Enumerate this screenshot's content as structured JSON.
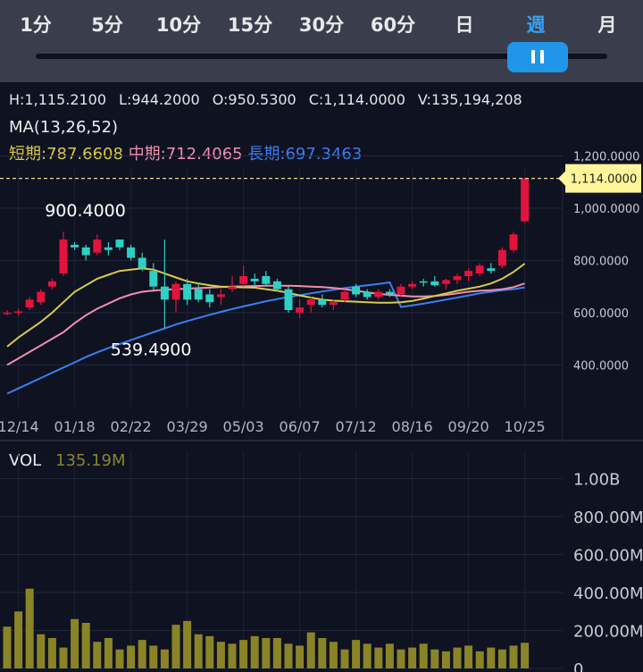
{
  "tabs": [
    {
      "label": "1分",
      "active": false
    },
    {
      "label": "5分",
      "active": false
    },
    {
      "label": "10分",
      "active": false
    },
    {
      "label": "15分",
      "active": false
    },
    {
      "label": "30分",
      "active": false
    },
    {
      "label": "60分",
      "active": false
    },
    {
      "label": "日",
      "active": false
    },
    {
      "label": "週",
      "active": true
    },
    {
      "label": "月",
      "active": false
    }
  ],
  "zoom_slider": {
    "position": 0.88
  },
  "ohlc": {
    "high": "H:1,115.2100",
    "low": "L:944.2000",
    "open": "O:950.5300",
    "close": "C:1,114.0000",
    "volume": "V:135,194,208"
  },
  "ma": {
    "title": "MA(13,26,52)",
    "short_label": "短期:787.6608",
    "mid_label": "中期:712.4065",
    "long_label": "長期:697.3463"
  },
  "volume_panel": {
    "label": "VOL",
    "value": "135.19M"
  },
  "colors": {
    "up": "#e0143c",
    "down": "#2fd0c4",
    "ma_short": "#d8cb4a",
    "ma_mid": "#f08fb0",
    "ma_long": "#3a7ff0",
    "volume": "#8a8428",
    "price_tag": "#fff59a",
    "active_tab": "#3aa0ef"
  },
  "chart_data": [
    {
      "type": "candlestick",
      "title": "",
      "last_price_label": "1,114.0000",
      "last_price": 1114,
      "y_ticks": [
        "1,200.0000",
        "1,000.0000",
        "800.0000",
        "600.0000",
        "400.0000"
      ],
      "y_tick_values": [
        1200,
        1000,
        800,
        600,
        400
      ],
      "ylim": [
        250,
        1370
      ],
      "x_ticks": [
        {
          "label": "12/14",
          "index": 1
        },
        {
          "label": "01/18",
          "index": 6
        },
        {
          "label": "02/22",
          "index": 11
        },
        {
          "label": "03/29",
          "index": 16
        },
        {
          "label": "05/03",
          "index": 21
        },
        {
          "label": "06/07",
          "index": 26
        },
        {
          "label": "07/12",
          "index": 31
        },
        {
          "label": "08/16",
          "index": 36
        },
        {
          "label": "09/20",
          "index": 41
        },
        {
          "label": "10/25",
          "index": 46
        }
      ],
      "annotations": [
        {
          "label": "900.4000",
          "value": 900.4,
          "index": 7
        },
        {
          "label": "539.4900",
          "value": 539.49,
          "index": 13
        }
      ],
      "ohlc": [
        [
          600,
          610,
          590,
          600
        ],
        [
          600,
          615,
          590,
          605
        ],
        [
          620,
          660,
          610,
          650
        ],
        [
          640,
          690,
          630,
          680
        ],
        [
          700,
          730,
          690,
          720
        ],
        [
          750,
          910,
          740,
          880
        ],
        [
          860,
          870,
          840,
          850
        ],
        [
          850,
          860,
          800,
          820
        ],
        [
          830,
          900,
          820,
          880
        ],
        [
          850,
          870,
          820,
          840
        ],
        [
          880,
          880,
          840,
          850
        ],
        [
          850,
          860,
          800,
          810
        ],
        [
          810,
          830,
          760,
          770
        ],
        [
          760,
          790,
          680,
          700
        ],
        [
          700,
          880,
          540,
          650
        ],
        [
          650,
          720,
          600,
          710
        ],
        [
          710,
          730,
          630,
          650
        ],
        [
          690,
          710,
          640,
          650
        ],
        [
          670,
          690,
          620,
          640
        ],
        [
          660,
          690,
          630,
          670
        ],
        [
          690,
          740,
          680,
          700
        ],
        [
          710,
          780,
          700,
          740
        ],
        [
          730,
          750,
          700,
          720
        ],
        [
          740,
          760,
          700,
          710
        ],
        [
          720,
          730,
          680,
          690
        ],
        [
          690,
          700,
          600,
          610
        ],
        [
          600,
          650,
          580,
          620
        ],
        [
          630,
          660,
          600,
          650
        ],
        [
          650,
          670,
          620,
          630
        ],
        [
          630,
          650,
          610,
          640
        ],
        [
          650,
          690,
          640,
          680
        ],
        [
          700,
          710,
          660,
          670
        ],
        [
          680,
          690,
          650,
          660
        ],
        [
          660,
          690,
          650,
          680
        ],
        [
          680,
          690,
          660,
          670
        ],
        [
          670,
          710,
          660,
          700
        ],
        [
          700,
          720,
          690,
          710
        ],
        [
          720,
          730,
          700,
          715
        ],
        [
          720,
          740,
          700,
          705
        ],
        [
          710,
          730,
          690,
          725
        ],
        [
          725,
          750,
          710,
          740
        ],
        [
          740,
          770,
          720,
          760
        ],
        [
          750,
          790,
          740,
          780
        ],
        [
          770,
          790,
          750,
          760
        ],
        [
          780,
          850,
          770,
          840
        ],
        [
          840,
          910,
          830,
          900
        ],
        [
          950,
          1115,
          944,
          1114
        ]
      ],
      "ma_short": [
        470,
        505,
        535,
        565,
        600,
        640,
        680,
        705,
        730,
        745,
        760,
        765,
        770,
        765,
        750,
        735,
        720,
        712,
        705,
        700,
        698,
        697,
        696,
        690,
        684,
        676,
        666,
        658,
        650,
        646,
        644,
        642,
        640,
        638,
        638,
        640,
        645,
        654,
        664,
        674,
        684,
        692,
        700,
        712,
        730,
        756,
        788
      ],
      "ma_mid": [
        400,
        425,
        450,
        475,
        500,
        525,
        560,
        590,
        615,
        635,
        655,
        670,
        680,
        685,
        688,
        690,
        692,
        694,
        696,
        698,
        700,
        701,
        702,
        703,
        703,
        703,
        702,
        700,
        698,
        695,
        690,
        684,
        678,
        672,
        668,
        665,
        662,
        662,
        664,
        668,
        674,
        680,
        684,
        686,
        690,
        698,
        712
      ],
      "ma_long": [
        290,
        310,
        330,
        350,
        370,
        390,
        410,
        430,
        448,
        465,
        480,
        495,
        510,
        525,
        540,
        555,
        568,
        580,
        592,
        603,
        614,
        624,
        634,
        644,
        652,
        660,
        667,
        674,
        681,
        688,
        694,
        700,
        705,
        710,
        716,
        622,
        628,
        635,
        642,
        650,
        658,
        666,
        674,
        680,
        686,
        690,
        697
      ]
    },
    {
      "type": "bar",
      "title": "",
      "series_name": "VOL",
      "y_ticks": [
        "1.00B",
        "800.00M",
        "600.00M",
        "400.00M",
        "200.00M",
        "0"
      ],
      "y_tick_values": [
        1000,
        800,
        600,
        400,
        200,
        0
      ],
      "unit": "M",
      "ylim": [
        0,
        1100
      ],
      "values": [
        220,
        300,
        420,
        180,
        160,
        110,
        260,
        240,
        140,
        160,
        100,
        120,
        150,
        120,
        100,
        230,
        250,
        180,
        170,
        140,
        130,
        150,
        170,
        160,
        160,
        130,
        120,
        190,
        160,
        140,
        100,
        150,
        130,
        110,
        130,
        100,
        110,
        130,
        100,
        90,
        110,
        120,
        90,
        110,
        100,
        120,
        135
      ]
    }
  ]
}
